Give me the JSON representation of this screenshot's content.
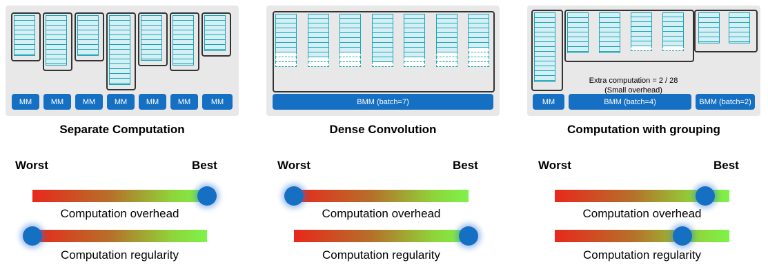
{
  "panels": [
    {
      "caption": "Separate Computation",
      "mm_labels": [
        "MM",
        "MM",
        "MM",
        "MM",
        "MM",
        "MM",
        "MM"
      ]
    },
    {
      "caption": "Dense Convolution",
      "bmm_label": "BMM (batch=7)"
    },
    {
      "caption": "Computation with grouping",
      "mm_label": "MM",
      "bmm4_label": "BMM (batch=4)",
      "bmm2_label": "BMM (batch=2)",
      "note_line1": "Extra computation = 2 / 28",
      "note_line2": "(Small overhead)"
    }
  ],
  "scales": {
    "worst_label": "Worst",
    "best_label": "Best",
    "overhead_label": "Computation overhead",
    "regularity_label": "Computation regularity"
  },
  "ratings": [
    {
      "overhead": 1.0,
      "regularity": 0.0
    },
    {
      "overhead": 0.0,
      "regularity": 1.0
    },
    {
      "overhead": 0.86,
      "regularity": 0.73
    }
  ],
  "colors": {
    "panel_bg": "#e8e8e8",
    "matrix_fill": "#c8ecf2",
    "matrix_border": "#1aa3b5",
    "op_blue": "#1570c4",
    "gradient_worst": "#e8281c",
    "gradient_best": "#7ef34a"
  }
}
